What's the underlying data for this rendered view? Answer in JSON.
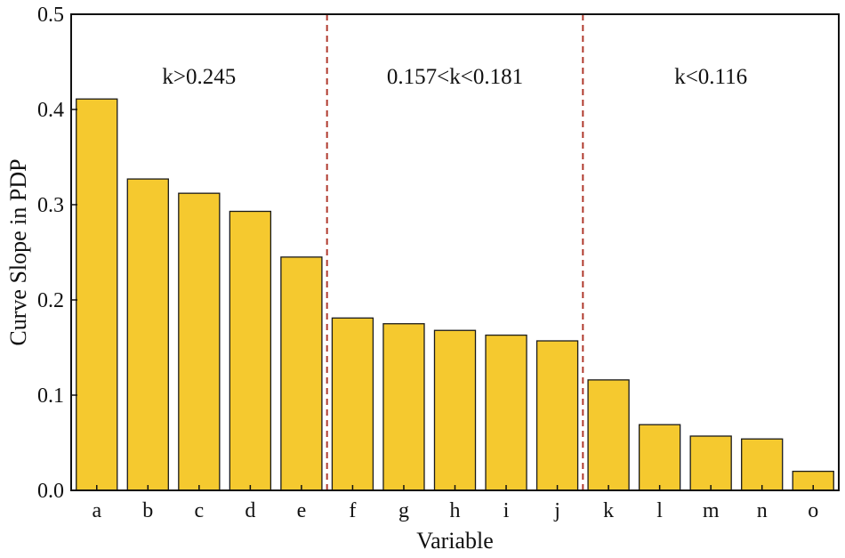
{
  "chart_data": {
    "type": "bar",
    "xlabel": "Variable",
    "ylabel": "Curve Slope in PDP",
    "categories": [
      "a",
      "b",
      "c",
      "d",
      "e",
      "f",
      "g",
      "h",
      "i",
      "j",
      "k",
      "l",
      "m",
      "n",
      "o"
    ],
    "values": [
      0.411,
      0.327,
      0.312,
      0.293,
      0.245,
      0.181,
      0.175,
      0.168,
      0.163,
      0.157,
      0.116,
      0.069,
      0.057,
      0.054,
      0.02
    ],
    "ylim": [
      0,
      0.5
    ],
    "yticks": [
      "0.0",
      "0.1",
      "0.2",
      "0.3",
      "0.4",
      "0.5"
    ],
    "grid": false,
    "bar_color": "#F5C92F",
    "divider_color": "#B03A2E",
    "dividers_after_category": [
      "e",
      "j"
    ],
    "annotations": [
      "k>0.245",
      "0.157<k<0.181",
      "k<0.116"
    ]
  }
}
